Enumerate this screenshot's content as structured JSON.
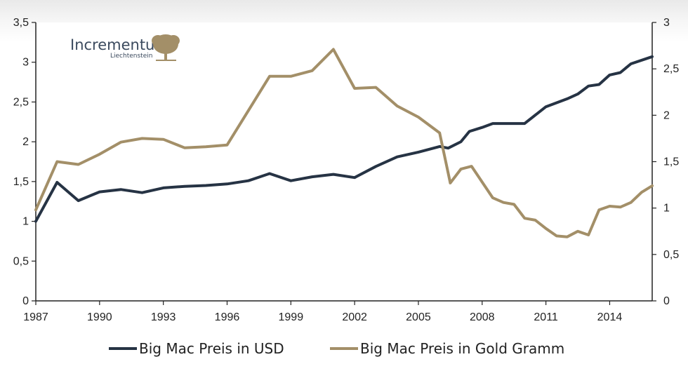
{
  "logo": {
    "name": "Incrementum",
    "subtitle": "Liechtenstein"
  },
  "chart_data": {
    "type": "line",
    "title": "",
    "xlabel": "",
    "ylabel": "",
    "xlim": [
      1987,
      2016
    ],
    "x_ticks": [
      "1987",
      "1990",
      "1993",
      "1996",
      "1999",
      "2002",
      "2005",
      "2008",
      "2011",
      "2014"
    ],
    "y_left_lim": [
      0,
      3.5
    ],
    "y_left_ticks": [
      "0",
      "0,5",
      "1",
      "1,5",
      "2",
      "2,5",
      "3",
      "3,5"
    ],
    "y_right_lim": [
      0,
      3
    ],
    "y_right_ticks": [
      "0",
      "0,5",
      "1",
      "1,5",
      "2",
      "2,5",
      "3"
    ],
    "grid": false,
    "legend_position": "bottom",
    "colors": {
      "usd": "#263344",
      "gold": "#a38f68"
    },
    "series": [
      {
        "name": "Big Mac Preis in USD",
        "axis": "left",
        "x": [
          1987,
          1988,
          1989,
          1990,
          1991,
          1992,
          1993,
          1994,
          1995,
          1996,
          1997,
          1998,
          1999,
          2000,
          2001,
          2002,
          2003,
          2004,
          2005,
          2006,
          2006.4,
          2007,
          2007.4,
          2008,
          2008.5,
          2009,
          2010,
          2011,
          2012,
          2012.5,
          2013,
          2013.5,
          2014,
          2014.5,
          2015,
          2016
        ],
        "values": [
          1.0,
          1.49,
          1.26,
          1.37,
          1.4,
          1.36,
          1.42,
          1.44,
          1.45,
          1.47,
          1.51,
          1.6,
          1.51,
          1.56,
          1.59,
          1.55,
          1.69,
          1.81,
          1.87,
          1.94,
          1.92,
          2.0,
          2.13,
          2.18,
          2.23,
          2.23,
          2.23,
          2.44,
          2.54,
          2.6,
          2.7,
          2.72,
          2.84,
          2.87,
          2.98,
          3.07
        ]
      },
      {
        "name": "Big Mac Preis in Gold Gramm",
        "axis": "right",
        "x": [
          1987,
          1988,
          1989,
          1990,
          1991,
          1992,
          1993,
          1994,
          1995,
          1996,
          1997,
          1998,
          1999,
          2000,
          2001,
          2002,
          2003,
          2004,
          2005,
          2006,
          2006.5,
          2007,
          2007.5,
          2008,
          2008.5,
          2009,
          2009.5,
          2010,
          2010.5,
          2011,
          2011.5,
          2012,
          2012.5,
          2013,
          2013.5,
          2014,
          2014.5,
          2015,
          2015.5,
          2016
        ],
        "values": [
          0.98,
          1.5,
          1.47,
          1.58,
          1.71,
          1.75,
          1.74,
          1.65,
          1.66,
          1.68,
          2.05,
          2.42,
          2.42,
          2.48,
          2.71,
          2.29,
          2.3,
          2.1,
          1.98,
          1.81,
          1.27,
          1.42,
          1.45,
          1.28,
          1.11,
          1.06,
          1.04,
          0.89,
          0.87,
          0.78,
          0.7,
          0.69,
          0.75,
          0.71,
          0.98,
          1.02,
          1.01,
          1.06,
          1.17,
          1.24
        ]
      }
    ]
  }
}
